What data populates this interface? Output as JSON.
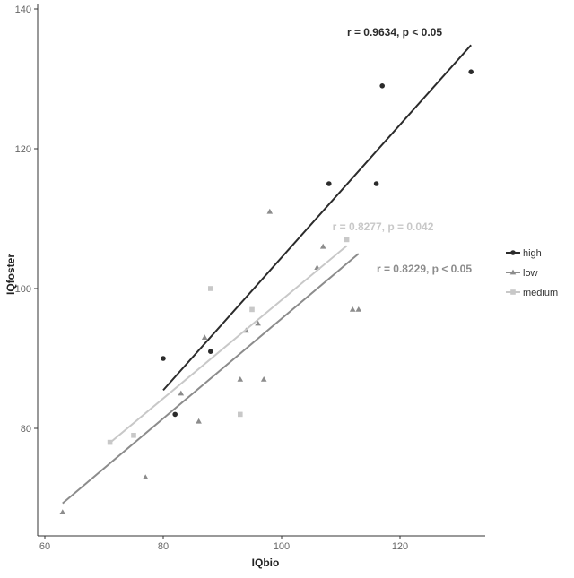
{
  "chart_data": {
    "type": "scatter",
    "xlabel": "IQbio",
    "ylabel": "IQfoster",
    "xlim": [
      60,
      135
    ],
    "ylim": [
      65,
      140
    ],
    "xticks": [
      60,
      80,
      100,
      120
    ],
    "yticks": [
      80,
      100,
      120,
      140
    ],
    "grid": false,
    "legend_placement": "right",
    "series": [
      {
        "name": "high",
        "marker": "circle",
        "color": "#2b2b2b",
        "x": [
          80,
          82,
          88,
          108,
          116,
          117,
          132
        ],
        "y": [
          90,
          82,
          91,
          115,
          115,
          129,
          131
        ],
        "annotation": "r = 0.9634, p < 0.05"
      },
      {
        "name": "low",
        "marker": "triangle",
        "color": "#8c8c8c",
        "x": [
          63,
          77,
          83,
          86,
          87,
          93,
          94,
          96,
          97,
          98,
          106,
          107,
          112,
          113
        ],
        "y": [
          68,
          73,
          85,
          81,
          93,
          87,
          94,
          95,
          87,
          111,
          103,
          106,
          97,
          97
        ],
        "annotation": "r = 0.8229, p < 0.05"
      },
      {
        "name": "medium",
        "marker": "square",
        "color": "#c8c8c8",
        "x": [
          71,
          75,
          88,
          93,
          95,
          111
        ],
        "y": [
          78,
          79,
          100,
          82,
          97,
          107
        ],
        "annotation": "r = 0.8277, p =  0.042"
      }
    ]
  }
}
